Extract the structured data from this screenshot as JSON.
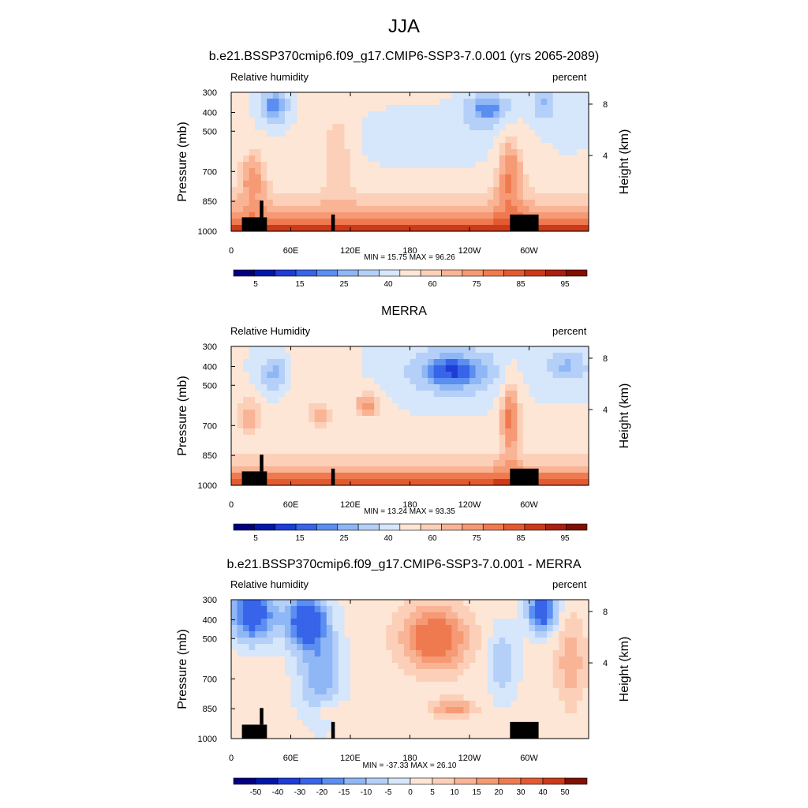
{
  "figure": {
    "title": "JJA"
  },
  "chart_data": [
    {
      "type": "heatmap",
      "title": "b.e21.BSSP370cmip6.f09_g17.CMIP6-SSP3-7.0.001 (yrs 2065-2089)",
      "left_label": "Relative humidity",
      "right_label": "percent",
      "ylabel": "Pressure (mb)",
      "y2label": "Height (km)",
      "x_ticks": [
        "0",
        "60E",
        "120E",
        "180",
        "120W",
        "60W"
      ],
      "y_ticks": [
        "300",
        "400",
        "500",
        "700",
        "850",
        "1000"
      ],
      "y2_ticks": [
        "8",
        "4"
      ],
      "stats": "MIN = 15.75  MAX = 96.26",
      "min": 15.75,
      "max": 96.26,
      "colorbar_labels": [
        "5",
        "15",
        "25",
        "40",
        "60",
        "75",
        "85",
        "95"
      ],
      "colors": [
        "#00007f",
        "#0018a8",
        "#1e3cd6",
        "#3764e8",
        "#5a8ef0",
        "#8fb6f5",
        "#b4d0f8",
        "#d6e6fb",
        "#fde6d6",
        "#fcd0b8",
        "#f9b496",
        "#f59a74",
        "#f07a50",
        "#e45a30",
        "#cc3a1a",
        "#a82010",
        "#801000"
      ]
    },
    {
      "type": "heatmap",
      "title": "MERRA",
      "left_label": "Relative Humidity",
      "right_label": "percent",
      "ylabel": "Pressure (mb)",
      "y2label": "Height (km)",
      "x_ticks": [
        "0",
        "60E",
        "120E",
        "180",
        "120W",
        "60W"
      ],
      "y_ticks": [
        "300",
        "400",
        "500",
        "700",
        "850",
        "1000"
      ],
      "y2_ticks": [
        "8",
        "4"
      ],
      "stats": "MIN = 13.24  MAX = 93.35",
      "min": 13.24,
      "max": 93.35,
      "colorbar_labels": [
        "5",
        "15",
        "25",
        "40",
        "60",
        "75",
        "85",
        "95"
      ],
      "colors": [
        "#00007f",
        "#0018a8",
        "#1e3cd6",
        "#3764e8",
        "#5a8ef0",
        "#8fb6f5",
        "#b4d0f8",
        "#d6e6fb",
        "#fde6d6",
        "#fcd0b8",
        "#f9b496",
        "#f59a74",
        "#f07a50",
        "#e45a30",
        "#cc3a1a",
        "#a82010",
        "#801000"
      ]
    },
    {
      "type": "heatmap",
      "title": "b.e21.BSSP370cmip6.f09_g17.CMIP6-SSP3-7.0.001 - MERRA",
      "left_label": "Relative humidity",
      "right_label": "percent",
      "ylabel": "Pressure (mb)",
      "y2label": "Height (km)",
      "x_ticks": [
        "0",
        "60E",
        "120E",
        "180",
        "120W",
        "60W"
      ],
      "y_ticks": [
        "300",
        "400",
        "500",
        "700",
        "850",
        "1000"
      ],
      "y2_ticks": [
        "8",
        "4"
      ],
      "stats": "MIN = -37.33  MAX = 26.10",
      "min": -37.33,
      "max": 26.1,
      "colorbar_labels": [
        "-50",
        "-40",
        "-30",
        "-20",
        "-15",
        "-10",
        "-5",
        "0",
        "5",
        "10",
        "15",
        "20",
        "30",
        "40",
        "50"
      ],
      "colors": [
        "#00007f",
        "#0018a8",
        "#1e3cd6",
        "#3764e8",
        "#5a8ef0",
        "#8fb6f5",
        "#b4d0f8",
        "#d6e6fb",
        "#fde6d6",
        "#fcd0b8",
        "#f9b496",
        "#f59a74",
        "#f07a50",
        "#e45a30",
        "#cc3a1a",
        "#801000"
      ]
    }
  ]
}
